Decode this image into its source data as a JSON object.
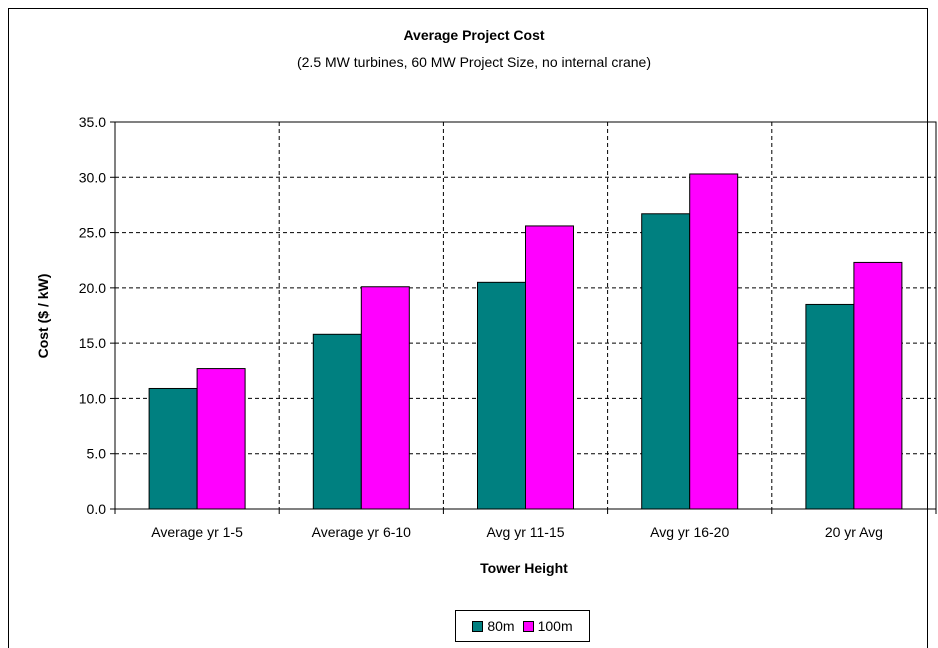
{
  "chart_data": {
    "type": "bar",
    "title": "Average Project Cost",
    "subtitle": "(2.5 MW turbines, 60 MW Project Size, no internal crane)",
    "xlabel": "Tower Height",
    "ylabel": "Cost ($ / kW)",
    "ylim": [
      0,
      35
    ],
    "yticks": [
      "0.0",
      "5.0",
      "10.0",
      "15.0",
      "20.0",
      "25.0",
      "30.0",
      "35.0"
    ],
    "grid": true,
    "legend_position": "bottom",
    "categories": [
      "Average yr 1-5",
      "Average yr 6-10",
      "Avg yr 11-15",
      "Avg yr 16-20",
      "20 yr Avg"
    ],
    "series": [
      {
        "name": "80m",
        "color": "#008080",
        "values": [
          10.9,
          15.8,
          20.5,
          26.7,
          18.5
        ]
      },
      {
        "name": "100m",
        "color": "#ff00ff",
        "values": [
          12.7,
          20.1,
          25.6,
          30.3,
          22.3
        ]
      }
    ]
  }
}
